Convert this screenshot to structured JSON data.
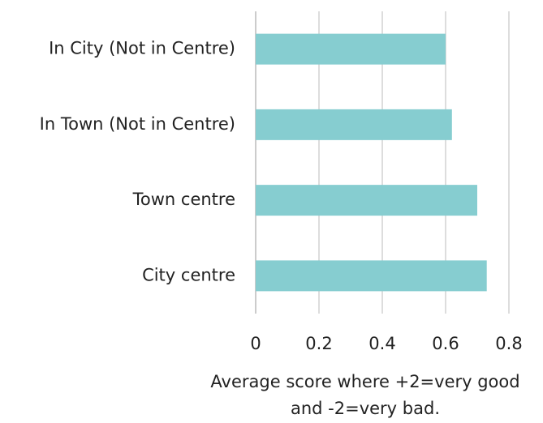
{
  "chart_data": {
    "type": "barh",
    "categories": [
      "In City (Not in Centre)",
      "In Town (Not in Centre)",
      "Town centre",
      "City centre"
    ],
    "values": [
      0.6,
      0.62,
      0.7,
      0.73
    ],
    "color": "#86cdd0",
    "xlim": [
      0,
      0.8
    ],
    "xticks": [
      0,
      0.2,
      0.4,
      0.6,
      0.8
    ],
    "grid": true,
    "x_label": [
      "Average score where +2=very good",
      "and -2=very bad."
    ]
  }
}
